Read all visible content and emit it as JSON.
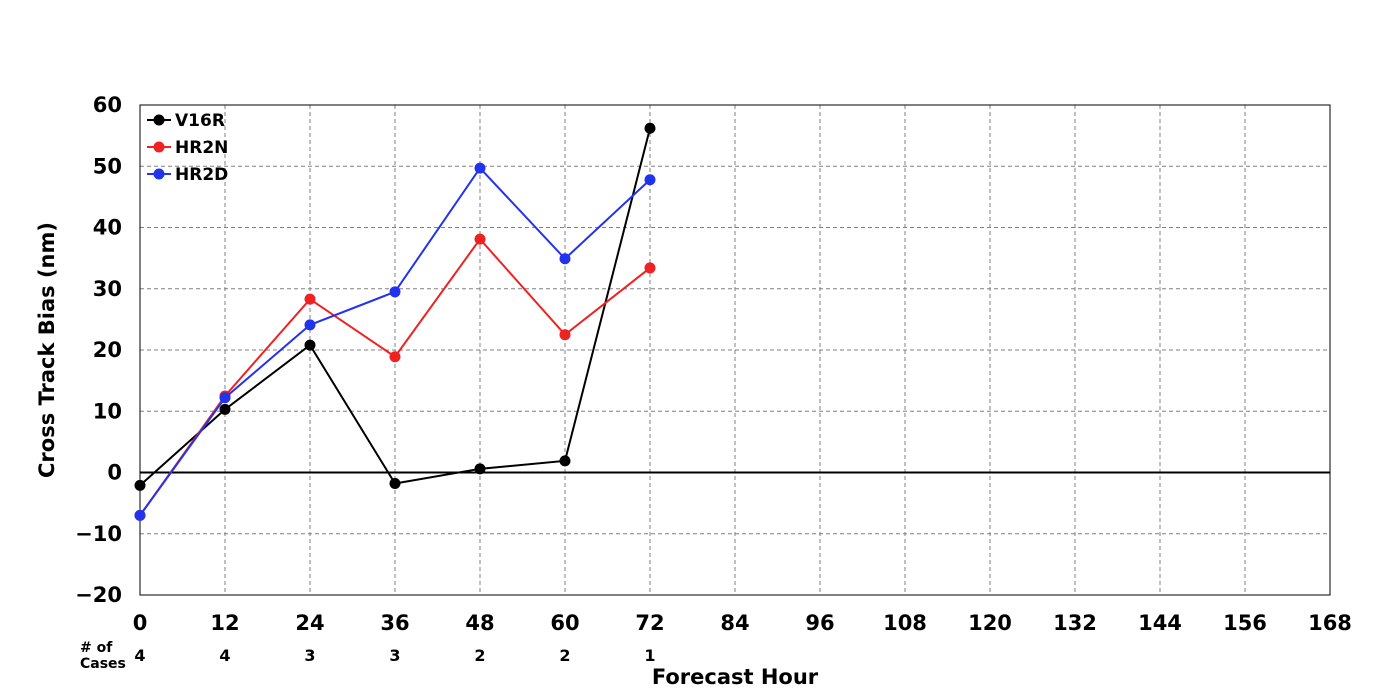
{
  "chart_data": {
    "type": "line",
    "xlabel": "Forecast Hour",
    "ylabel": "Cross Track Bias (nm)",
    "xlim": [
      0,
      168
    ],
    "ylim": [
      -20,
      60
    ],
    "x_ticks": [
      0,
      12,
      24,
      36,
      48,
      60,
      72,
      84,
      96,
      108,
      120,
      132,
      144,
      156,
      168
    ],
    "y_ticks": [
      -20,
      -10,
      0,
      10,
      20,
      30,
      40,
      50,
      60
    ],
    "x_tick_labels": [
      "0",
      "12",
      "24",
      "36",
      "48",
      "60",
      "72",
      "84",
      "96",
      "108",
      "120",
      "132",
      "144",
      "156",
      "168"
    ],
    "y_tick_labels": [
      "−20",
      "−10",
      "0",
      "10",
      "20",
      "30",
      "40",
      "50",
      "60"
    ],
    "grid": true,
    "legend_position": "top-left",
    "x": [
      0,
      12,
      24,
      36,
      48,
      60,
      72
    ],
    "series": [
      {
        "name": "V16R",
        "color": "#000000",
        "values": [
          -2.1,
          10.3,
          20.8,
          -1.8,
          0.6,
          1.9,
          56.2
        ]
      },
      {
        "name": "HR2N",
        "color": "#ee2222",
        "values": [
          -7.0,
          12.5,
          28.3,
          18.9,
          38.1,
          22.5,
          33.4
        ]
      },
      {
        "name": "HR2D",
        "color": "#2233ee",
        "values": [
          -7.0,
          12.2,
          24.1,
          29.5,
          49.7,
          34.9,
          47.8
        ]
      }
    ],
    "cases_label_line1": "# of",
    "cases_label_line2": "Cases",
    "cases": [
      "4",
      "4",
      "3",
      "3",
      "2",
      "2",
      "1"
    ]
  }
}
